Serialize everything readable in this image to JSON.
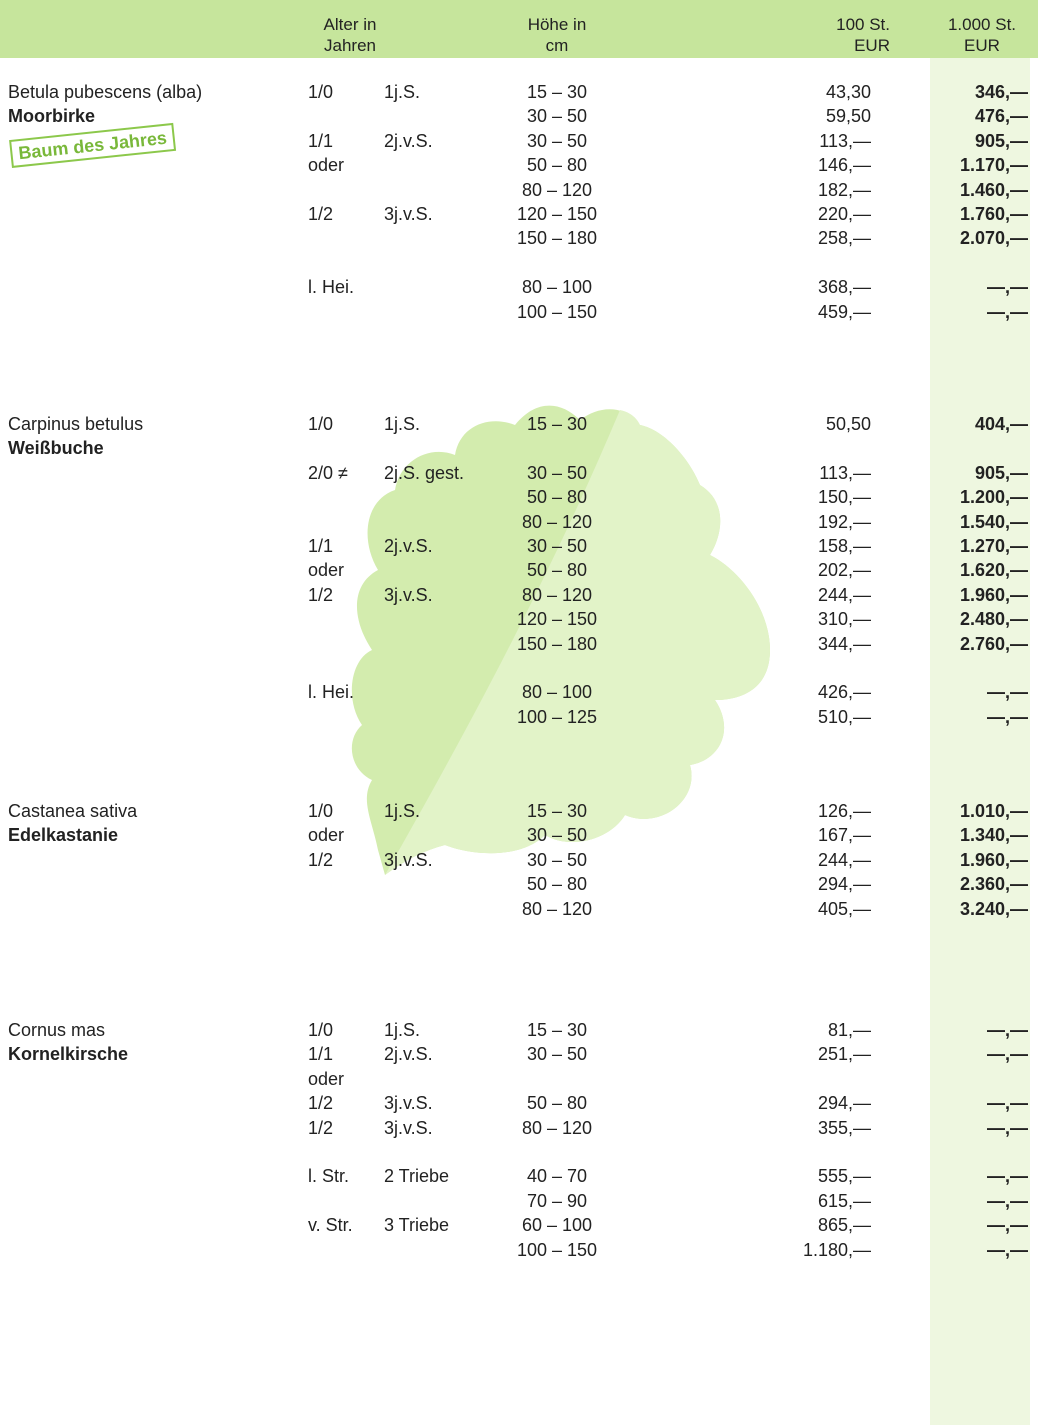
{
  "header": [
    [
      "Alter in",
      "Jahren"
    ],
    [
      "Höhe in",
      "cm"
    ],
    [
      "100 St.",
      "EUR"
    ],
    [
      "1.000 St.",
      "EUR"
    ]
  ],
  "species": [
    {
      "latin": "Betula pubescens (alba)",
      "common": "Moorbirke",
      "badge": "Baum des Jahres",
      "groups": [
        [
          {
            "age": "1/0",
            "kind": "1j.S.",
            "height": "15 – 30",
            "p100": "43,30",
            "p1000": "346,—"
          },
          {
            "height": "30 – 50",
            "p100": "59,50",
            "p1000": "476,—"
          },
          {
            "age": "1/1",
            "kind": "2j.v.S.",
            "height": "30 – 50",
            "p100": "113,—",
            "p1000": "905,—"
          },
          {
            "age": "oder",
            "height": "50 – 80",
            "p100": "146,—",
            "p1000": "1.170,—"
          },
          {
            "height": "80 – 120",
            "p100": "182,—",
            "p1000": "1.460,—"
          },
          {
            "age": "1/2",
            "kind": "3j.v.S.",
            "height": "120 – 150",
            "p100": "220,—",
            "p1000": "1.760,—"
          },
          {
            "height": "150 – 180",
            "p100": "258,—",
            "p1000": "2.070,—"
          }
        ],
        [
          {
            "age": "l. Hei.",
            "height": "80 – 100",
            "p100": "368,—",
            "p1000": "—,—"
          },
          {
            "height": "100 – 150",
            "p100": "459,—",
            "p1000": "—,—"
          }
        ]
      ]
    },
    {
      "latin": "Carpinus betulus",
      "common": "Weißbuche",
      "groups": [
        [
          {
            "age": "1/0",
            "kind": "1j.S.",
            "height": "15 – 30",
            "p100": "50,50",
            "p1000": "404,—"
          }
        ],
        [
          {
            "age": "2/0 ≠",
            "kind": "2j.S. gest.",
            "height": "30 – 50",
            "p100": "113,—",
            "p1000": "905,—"
          },
          {
            "height": "50 – 80",
            "p100": "150,—",
            "p1000": "1.200,—"
          },
          {
            "height": "80 – 120",
            "p100": "192,—",
            "p1000": "1.540,—"
          },
          {
            "age": "1/1",
            "kind": "2j.v.S.",
            "height": "30 – 50",
            "p100": "158,—",
            "p1000": "1.270,—"
          },
          {
            "age": "oder",
            "height": "50 – 80",
            "p100": "202,—",
            "p1000": "1.620,—"
          },
          {
            "age": "1/2",
            "kind": "3j.v.S.",
            "height": "80 – 120",
            "p100": "244,—",
            "p1000": "1.960,—"
          },
          {
            "height": "120 – 150",
            "p100": "310,—",
            "p1000": "2.480,—"
          },
          {
            "height": "150 – 180",
            "p100": "344,—",
            "p1000": "2.760,—"
          }
        ],
        [
          {
            "age": "l. Hei.",
            "height": "80 – 100",
            "p100": "426,—",
            "p1000": "—,—"
          },
          {
            "height": "100 – 125",
            "p100": "510,—",
            "p1000": "—,—"
          }
        ]
      ]
    },
    {
      "latin": "Castanea sativa",
      "common": "Edelkastanie",
      "groups": [
        [
          {
            "age": "1/0",
            "kind": "1j.S.",
            "height": "15 – 30",
            "p100": "126,—",
            "p1000": "1.010,—"
          },
          {
            "age": "oder",
            "height": "30 – 50",
            "p100": "167,—",
            "p1000": "1.340,—"
          },
          {
            "age": "1/2",
            "kind": "3j.v.S.",
            "height": "30 – 50",
            "p100": "244,—",
            "p1000": "1.960,—"
          },
          {
            "height": "50 – 80",
            "p100": "294,—",
            "p1000": "2.360,—"
          },
          {
            "height": "80 – 120",
            "p100": "405,—",
            "p1000": "3.240,—"
          }
        ]
      ]
    },
    {
      "latin": "Cornus mas",
      "common": "Kornelkirsche",
      "groups": [
        [
          {
            "age": "1/0",
            "kind": "1j.S.",
            "height": "15 – 30",
            "p100": "81,—",
            "p1000": "—,—"
          },
          {
            "age": "1/1",
            "kind": "2j.v.S.",
            "height": "30 – 50",
            "p100": "251,—",
            "p1000": "—,—"
          },
          {
            "age": "oder"
          },
          {
            "age": "1/2",
            "kind": "3j.v.S.",
            "height": "50 – 80",
            "p100": "294,—",
            "p1000": "—,—"
          },
          {
            "age": "1/2",
            "kind": "3j.v.S.",
            "height": "80 – 120",
            "p100": "355,—",
            "p1000": "—,—"
          }
        ],
        [
          {
            "age": "l. Str.",
            "kind": "2 Triebe",
            "height": "40 – 70",
            "p100": "555,—",
            "p1000": "—,—"
          },
          {
            "height": "70 – 90",
            "p100": "615,—",
            "p1000": "—,—"
          },
          {
            "age": "v. Str.",
            "kind": "3 Triebe",
            "height": "60 – 100",
            "p100": "865,—",
            "p1000": "—,—"
          },
          {
            "height": "100 – 150",
            "p100": "1.180,—",
            "p1000": "—,—"
          }
        ]
      ]
    }
  ]
}
